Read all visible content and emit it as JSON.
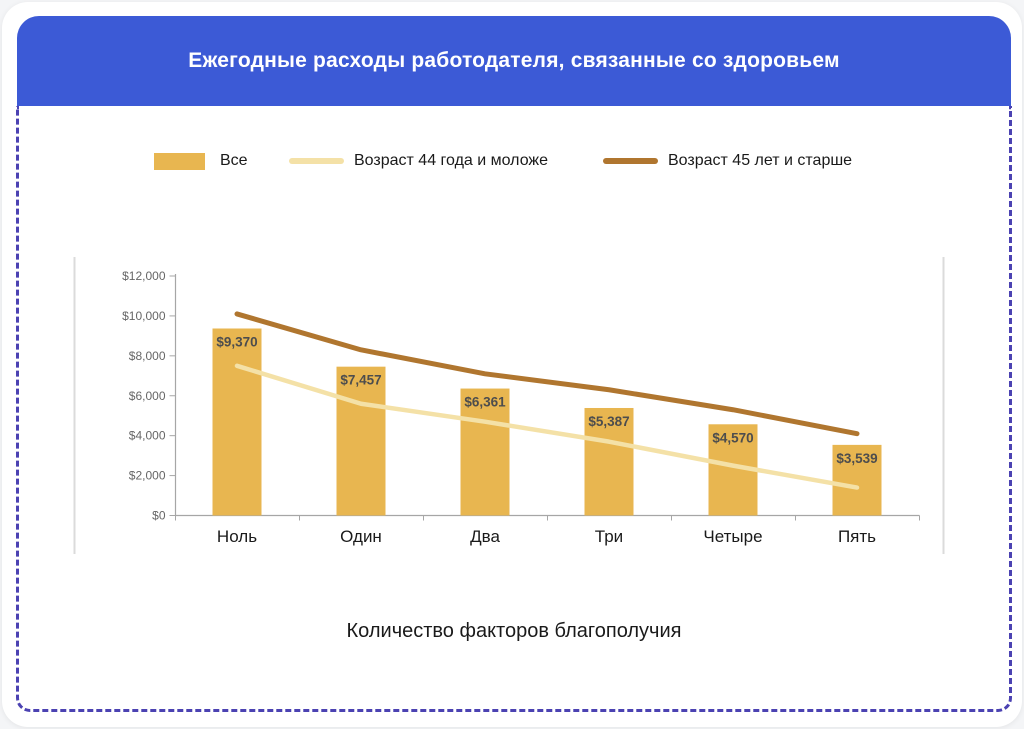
{
  "header": {
    "title": "Ежегодные расходы работодателя, связанные со здоровьем"
  },
  "legend": {
    "items": [
      {
        "label": "Все",
        "type": "box",
        "color": "#E8B650"
      },
      {
        "label": "Возраст 44 года и моложе",
        "type": "line",
        "color": "#F4E1A7"
      },
      {
        "label": "Возраст 45 лет и старше",
        "type": "line",
        "color": "#B0762F"
      }
    ]
  },
  "chart_data": {
    "type": "bar",
    "title": "Ежегодные расходы работодателя, связанные со здоровьем",
    "categories": [
      "Ноль",
      "Один",
      "Два",
      "Три",
      "Четыре",
      "Пять"
    ],
    "series": [
      {
        "name": "Все",
        "type": "bar",
        "color": "#E8B650",
        "values": [
          9370,
          7457,
          6361,
          5387,
          4570,
          3539
        ],
        "value_labels": [
          "$9,370",
          "$7,457",
          "$6,361",
          "$5,387",
          "$4,570",
          "$3,539"
        ]
      },
      {
        "name": "Возраст 44 года и моложе",
        "type": "line",
        "color": "#F4E1A7",
        "values": [
          7500,
          5600,
          4700,
          3700,
          2500,
          1400
        ]
      },
      {
        "name": "Возраст 45 лет и старше",
        "type": "line",
        "color": "#B0762F",
        "values": [
          10100,
          8300,
          7100,
          6300,
          5300,
          4100
        ]
      }
    ],
    "xlabel": "Количество факторов благополучия",
    "ylabel": "",
    "ylim": [
      0,
      12000
    ],
    "ytick_values": [
      0,
      2000,
      4000,
      6000,
      8000,
      10000,
      12000
    ],
    "ytick_labels": [
      "$0",
      "$2,000",
      "$4,000",
      "$6,000",
      "$8,000",
      "$10,000",
      "$12,000"
    ],
    "grid": false,
    "legend_position": "top"
  },
  "colors": {
    "header_bg": "#3C5AD6",
    "dashed_border": "#4B42B2",
    "axis_line": "#A6A6A6",
    "frame_line": "#DBDBDB",
    "tick_label": "#666666",
    "category_label": "#1a1a1a",
    "value_label": "#4D4D4D"
  }
}
